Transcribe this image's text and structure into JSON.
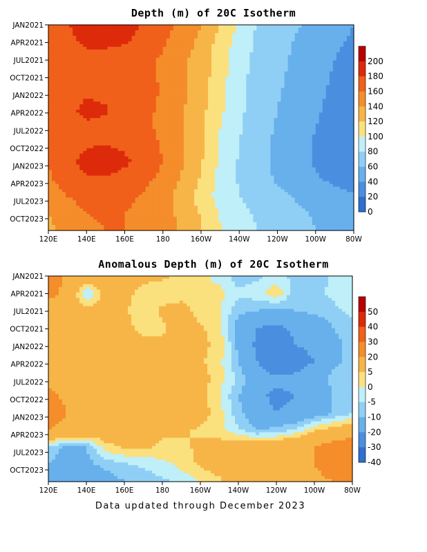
{
  "footer": "Data updated through December 2023",
  "chart_data": [
    {
      "type": "heatmap",
      "title": "Depth (m) of 20C Isotherm",
      "xlabel": "",
      "ylabel": "",
      "x_tick_labels": [
        "120E",
        "140E",
        "160E",
        "180",
        "160W",
        "140W",
        "120W",
        "100W",
        "80W"
      ],
      "y_tick_labels": [
        "JAN2021",
        "APR2021",
        "JUL2021",
        "OCT2021",
        "JAN2022",
        "APR2022",
        "JUL2022",
        "OCT2022",
        "JAN2023",
        "APR2023",
        "JUL2023",
        "OCT2023"
      ],
      "colorbar_labels": [
        "200",
        "180",
        "160",
        "140",
        "120",
        "100",
        "80",
        "60",
        "40",
        "20",
        "0"
      ],
      "colorbar_colors": [
        "#b80000",
        "#dd2a0a",
        "#f0601a",
        "#f48d2a",
        "#f7b548",
        "#fbe07e",
        "#bfeff8",
        "#90cff5",
        "#67b0ec",
        "#4a8fdf",
        "#2f6fd0"
      ],
      "x_lon": [
        120,
        130,
        140,
        150,
        160,
        170,
        180,
        190,
        200,
        210,
        220,
        230,
        240,
        250,
        260,
        270,
        280
      ],
      "months": [
        "JAN2021",
        "APR2021",
        "JUL2021",
        "OCT2021",
        "JAN2022",
        "APR2022",
        "JUL2022",
        "OCT2022",
        "JAN2023",
        "APR2023",
        "JUL2023",
        "OCT2023",
        "DEC2023"
      ],
      "values": [
        [
          165,
          178,
          195,
          198,
          190,
          178,
          168,
          155,
          140,
          120,
          95,
          78,
          72,
          62,
          55,
          45,
          40
        ],
        [
          160,
          172,
          185,
          186,
          182,
          172,
          162,
          150,
          135,
          112,
          92,
          75,
          68,
          58,
          50,
          42,
          38
        ],
        [
          162,
          168,
          172,
          170,
          168,
          165,
          158,
          145,
          130,
          110,
          88,
          74,
          66,
          56,
          48,
          40,
          36
        ],
        [
          168,
          170,
          172,
          170,
          170,
          165,
          158,
          145,
          130,
          108,
          86,
          72,
          64,
          54,
          46,
          38,
          34
        ],
        [
          168,
          172,
          178,
          176,
          172,
          166,
          158,
          145,
          128,
          106,
          86,
          72,
          62,
          52,
          44,
          36,
          32
        ],
        [
          166,
          175,
          185,
          182,
          172,
          165,
          156,
          142,
          126,
          104,
          84,
          70,
          60,
          50,
          42,
          36,
          32
        ],
        [
          164,
          172,
          176,
          175,
          170,
          165,
          155,
          140,
          124,
          100,
          82,
          68,
          58,
          48,
          40,
          34,
          30
        ],
        [
          162,
          170,
          178,
          180,
          176,
          168,
          158,
          142,
          124,
          98,
          80,
          66,
          56,
          46,
          38,
          32,
          28
        ],
        [
          160,
          172,
          188,
          192,
          184,
          172,
          160,
          142,
          122,
          96,
          78,
          66,
          56,
          46,
          38,
          32,
          28
        ],
        [
          158,
          168,
          178,
          178,
          172,
          165,
          155,
          138,
          118,
          94,
          78,
          66,
          58,
          50,
          42,
          36,
          32
        ],
        [
          150,
          160,
          168,
          168,
          165,
          158,
          148,
          132,
          112,
          92,
          80,
          72,
          64,
          58,
          52,
          46,
          42
        ],
        [
          140,
          150,
          160,
          162,
          160,
          155,
          148,
          135,
          118,
          98,
          86,
          76,
          70,
          64,
          58,
          52,
          48
        ],
        [
          136,
          146,
          156,
          160,
          160,
          155,
          148,
          138,
          122,
          102,
          90,
          80,
          72,
          66,
          60,
          54,
          50
        ]
      ]
    },
    {
      "type": "heatmap",
      "title": "Anomalous Depth (m) of 20C Isotherm",
      "xlabel": "",
      "ylabel": "",
      "x_tick_labels": [
        "120E",
        "140E",
        "160E",
        "180",
        "160W",
        "140W",
        "120W",
        "100W",
        "80W"
      ],
      "y_tick_labels": [
        "JAN2021",
        "APR2021",
        "JUL2021",
        "OCT2021",
        "JAN2022",
        "APR2022",
        "JUL2022",
        "OCT2022",
        "JAN2023",
        "APR2023",
        "JUL2023",
        "OCT2023"
      ],
      "colorbar_labels": [
        "50",
        "40",
        "30",
        "20",
        "5",
        "0",
        "-5",
        "-10",
        "-20",
        "-30",
        "-40"
      ],
      "colorbar_colors": [
        "#b80000",
        "#dd2a0a",
        "#f0601a",
        "#f48d2a",
        "#f7b548",
        "#fbe07e",
        "#bfeff8",
        "#90cff5",
        "#67b0ec",
        "#4a8fdf",
        "#2f6fd0"
      ],
      "x_lon": [
        120,
        130,
        140,
        150,
        160,
        170,
        180,
        190,
        200,
        210,
        220,
        230,
        240,
        250,
        260,
        270,
        280
      ],
      "months": [
        "JAN2021",
        "APR2021",
        "JUL2021",
        "OCT2021",
        "JAN2022",
        "APR2022",
        "JUL2022",
        "OCT2022",
        "JAN2023",
        "APR2023",
        "JUL2023",
        "OCT2023",
        "DEC2023"
      ],
      "values": [
        [
          28,
          18,
          12,
          10,
          8,
          6,
          6,
          4,
          2,
          -2,
          -8,
          -6,
          -4,
          -6,
          -8,
          -4,
          -2
        ],
        [
          25,
          16,
          -6,
          8,
          6,
          4,
          2,
          2,
          0,
          2,
          -4,
          -2,
          4,
          -8,
          -6,
          -4,
          -2
        ],
        [
          12,
          10,
          8,
          8,
          6,
          2,
          6,
          8,
          2,
          0,
          -8,
          -10,
          -12,
          -10,
          -8,
          -6,
          -4
        ],
        [
          14,
          10,
          8,
          6,
          6,
          4,
          4,
          8,
          6,
          2,
          -14,
          -20,
          -22,
          -18,
          -16,
          -10,
          -6
        ],
        [
          16,
          12,
          10,
          8,
          8,
          6,
          6,
          8,
          6,
          4,
          -12,
          -22,
          -26,
          -20,
          -18,
          -12,
          -8
        ],
        [
          14,
          12,
          10,
          8,
          8,
          6,
          6,
          8,
          6,
          2,
          -10,
          -20,
          -28,
          -24,
          -20,
          -12,
          -8
        ],
        [
          18,
          14,
          12,
          10,
          10,
          8,
          6,
          8,
          8,
          2,
          -6,
          -16,
          -18,
          -18,
          -14,
          -8,
          -6
        ],
        [
          22,
          18,
          16,
          14,
          12,
          10,
          8,
          8,
          8,
          0,
          -10,
          -18,
          -22,
          -20,
          -16,
          -10,
          -6
        ],
        [
          26,
          20,
          18,
          16,
          14,
          12,
          10,
          10,
          8,
          2,
          -8,
          -16,
          -20,
          -18,
          -14,
          -10,
          -6
        ],
        [
          20,
          16,
          14,
          12,
          10,
          8,
          6,
          6,
          4,
          2,
          -4,
          -10,
          -8,
          -4,
          4,
          8,
          12
        ],
        [
          -6,
          -12,
          -10,
          2,
          6,
          6,
          4,
          4,
          6,
          8,
          12,
          14,
          14,
          18,
          20,
          26,
          30
        ],
        [
          -10,
          -14,
          -12,
          -8,
          -6,
          -4,
          -2,
          2,
          6,
          8,
          10,
          12,
          14,
          16,
          20,
          24,
          26
        ],
        [
          -12,
          -18,
          -16,
          -14,
          -10,
          -8,
          -6,
          -4,
          0,
          4,
          8,
          10,
          12,
          14,
          18,
          20,
          22
        ]
      ]
    }
  ]
}
